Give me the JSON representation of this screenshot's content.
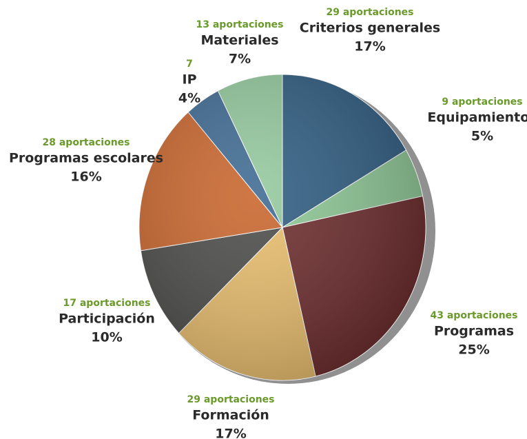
{
  "chart_data": {
    "type": "pie",
    "categories": [
      "Criterios generales",
      "Equipamientos",
      "Programas",
      "Formación",
      "Participación",
      "Programas escolares",
      "IP",
      "Materiales"
    ],
    "values": [
      29,
      9,
      43,
      29,
      17,
      28,
      7,
      13
    ],
    "value_labels": [
      "29 aportaciones",
      "9 aportaciones",
      "43 aportaciones",
      "29 aportaciones",
      "17 aportaciones",
      "28 aportaciones",
      "7",
      "13 aportaciones"
    ],
    "percent_labels": [
      "17%",
      "5%",
      "25%",
      "17%",
      "10%",
      "16%",
      "4%",
      "7%"
    ],
    "colors": [
      "#2d5b80",
      "#8cc694",
      "#6b2a2b",
      "#e8bd6c",
      "#4a4a48",
      "#c9652c",
      "#3e6a92",
      "#93c99d"
    ]
  }
}
